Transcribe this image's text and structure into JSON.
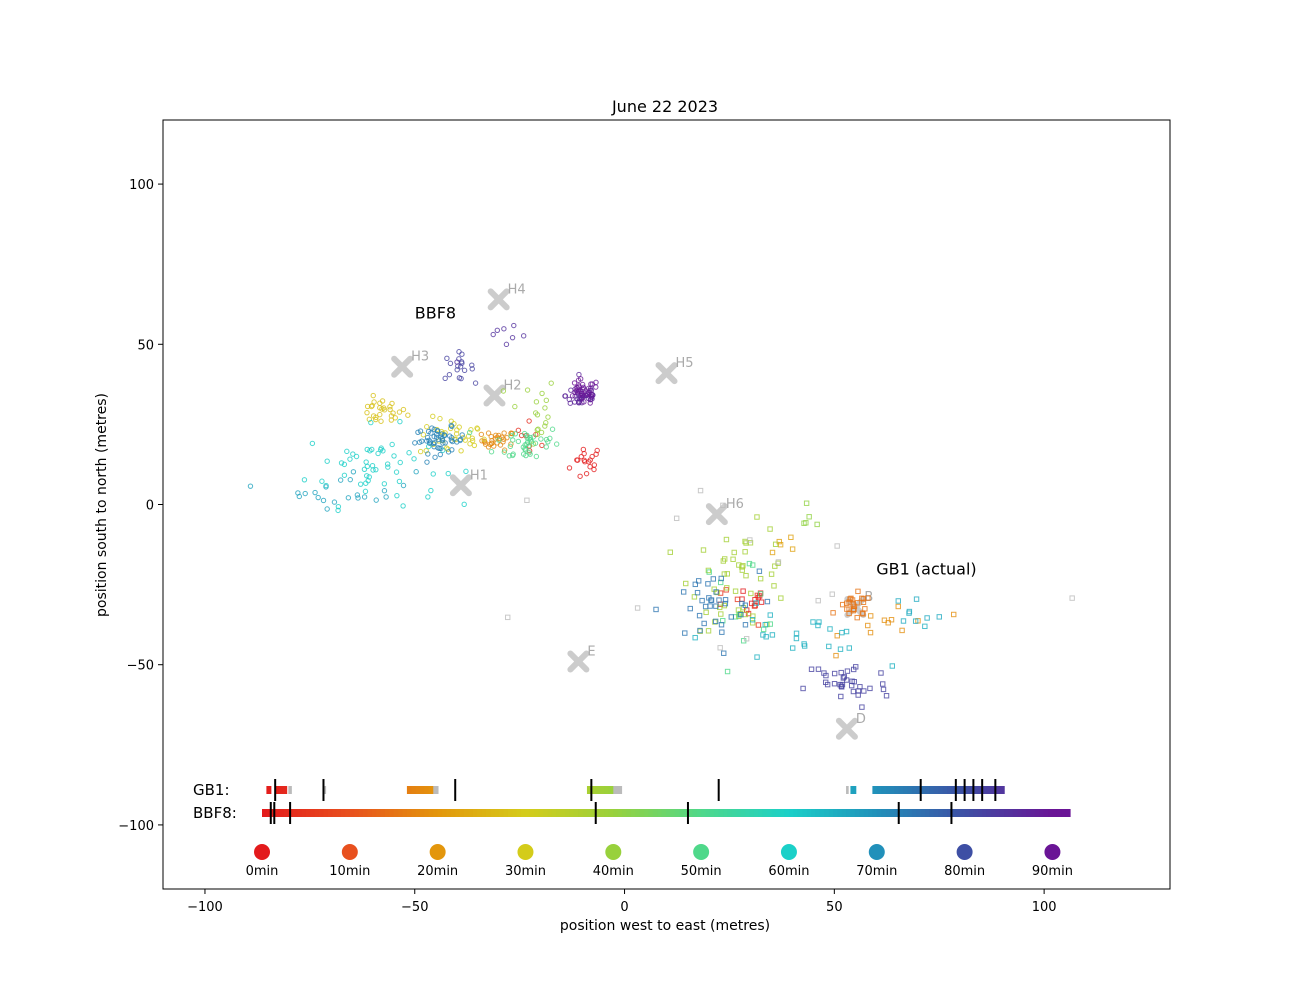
{
  "chart_data": {
    "type": "scatter",
    "title": "June 22 2023",
    "xlabel": "position west to east (metres)",
    "ylabel": "position south to north (metres)",
    "xlim": [
      -110,
      130
    ],
    "ylim": [
      -120,
      120
    ],
    "xticks": [
      -100,
      -50,
      0,
      50,
      100
    ],
    "yticks": [
      100,
      50,
      0,
      -50,
      -100
    ],
    "xtick_labels": [
      "−100",
      "−50",
      "0",
      "50",
      "100"
    ],
    "ytick_labels": [
      "100",
      "50",
      "0",
      "−50",
      "−100"
    ],
    "grid": false,
    "annotations": [
      {
        "text": "BBF8",
        "x": -50,
        "y": 60
      },
      {
        "text": "GB1 (actual)",
        "x": 60,
        "y": -20
      }
    ],
    "landmarks": [
      {
        "label": "H1",
        "x": -39,
        "y": 6
      },
      {
        "label": "H2",
        "x": -31,
        "y": 34
      },
      {
        "label": "H3",
        "x": -53,
        "y": 43
      },
      {
        "label": "H4",
        "x": -30,
        "y": 64
      },
      {
        "label": "H5",
        "x": 10,
        "y": 41
      },
      {
        "label": "H6",
        "x": 22,
        "y": -3
      },
      {
        "label": "E",
        "x": -11,
        "y": -49
      },
      {
        "label": "D",
        "x": 53,
        "y": -70
      },
      {
        "label": "B",
        "x": 55,
        "y": -32
      }
    ],
    "series": [
      {
        "name": "BBF8",
        "marker": "circle",
        "clusters": [
          {
            "t": 0,
            "cx": -9,
            "cy": 13,
            "rx": 2,
            "ry": 3,
            "n": 18
          },
          {
            "t": 3,
            "cx": -22,
            "cy": 22,
            "rx": 2,
            "ry": 2,
            "n": 8
          },
          {
            "t": 18,
            "cx": -30,
            "cy": 20,
            "rx": 2,
            "ry": 1.5,
            "n": 30
          },
          {
            "t": 28,
            "cx": -58,
            "cy": 29,
            "rx": 3,
            "ry": 2,
            "n": 28
          },
          {
            "t": 30,
            "cx": -41,
            "cy": 21,
            "rx": 4,
            "ry": 3,
            "n": 35
          },
          {
            "t": 40,
            "cx": -22,
            "cy": 29,
            "rx": 3,
            "ry": 6,
            "n": 18
          },
          {
            "t": 50,
            "cx": -23,
            "cy": 19,
            "rx": 4,
            "ry": 3,
            "n": 40
          },
          {
            "t": 60,
            "cx": -60,
            "cy": 12,
            "rx": 8,
            "ry": 6,
            "n": 55
          },
          {
            "t": 67,
            "cx": -66,
            "cy": 5,
            "rx": 8,
            "ry": 3,
            "n": 22
          },
          {
            "t": 72,
            "cx": -44,
            "cy": 20,
            "rx": 3,
            "ry": 2,
            "n": 50
          },
          {
            "t": 82,
            "cx": -40,
            "cy": 43,
            "rx": 2,
            "ry": 2,
            "n": 18
          },
          {
            "t": 85,
            "cx": -28,
            "cy": 50,
            "rx": 6,
            "ry": 3,
            "n": 8
          },
          {
            "t": 87,
            "cx": -10,
            "cy": 34,
            "rx": 2,
            "ry": 2,
            "n": 40
          },
          {
            "t": 92,
            "cx": -10,
            "cy": 35,
            "rx": 2,
            "ry": 2,
            "n": 30
          }
        ]
      },
      {
        "name": "GB1",
        "marker": "square",
        "clusters": [
          {
            "t": 0,
            "cx": 31,
            "cy": -30,
            "rx": 2,
            "ry": 2,
            "n": 10
          },
          {
            "t": 5,
            "cx": 26,
            "cy": -33,
            "rx": 4,
            "ry": 3,
            "n": 8
          },
          {
            "t": 15,
            "cx": 55,
            "cy": -32,
            "rx": 2,
            "ry": 2,
            "n": 25
          },
          {
            "t": 19,
            "cx": 64,
            "cy": -37,
            "rx": 6,
            "ry": 4,
            "n": 12
          },
          {
            "t": 22,
            "cx": 40,
            "cy": -12,
            "rx": 3,
            "ry": 3,
            "n": 5
          },
          {
            "t": 38,
            "cx": 28,
            "cy": -23,
            "rx": 6,
            "ry": 8,
            "n": 50
          },
          {
            "t": 41,
            "cx": 42,
            "cy": -4,
            "rx": 3,
            "ry": 4,
            "n": 5
          },
          {
            "t": 50,
            "cx": 28,
            "cy": -28,
            "rx": 6,
            "ry": 6,
            "n": 12
          },
          {
            "t": 65,
            "cx": 40,
            "cy": -42,
            "rx": 10,
            "ry": 5,
            "n": 25
          },
          {
            "t": 66,
            "cx": 70,
            "cy": -33,
            "rx": 3,
            "ry": 2,
            "n": 8
          },
          {
            "t": 74,
            "cx": 20,
            "cy": -33,
            "rx": 6,
            "ry": 6,
            "n": 35
          },
          {
            "t": 82,
            "cx": 53,
            "cy": -56,
            "rx": 5,
            "ry": 4,
            "n": 35
          },
          {
            "t": -1,
            "cx": 32,
            "cy": -18,
            "rx": 35,
            "ry": 18,
            "n": 14
          }
        ]
      }
    ],
    "timeline": {
      "rows": [
        {
          "label": "GB1:",
          "segments": [
            {
              "t0": 0.5,
              "t1": 1.0
            },
            {
              "t0": 1.5,
              "t1": 2.8
            },
            {
              "t0": 3.0,
              "t1": 3.4,
              "gap": true
            },
            {
              "t0": 7.0,
              "t1": 7.3,
              "gap": true
            },
            {
              "t0": 16.5,
              "t1": 19.5
            },
            {
              "t0": 19.5,
              "t1": 20.1,
              "gap": true
            },
            {
              "t0": 37.0,
              "t1": 40.0
            },
            {
              "t0": 40.0,
              "t1": 41.0,
              "gap": true
            },
            {
              "t0": 66.5,
              "t1": 66.8,
              "gap": true
            },
            {
              "t0": 67.0,
              "t1": 67.6
            },
            {
              "t0": 69.5,
              "t1": 84.5
            }
          ],
          "ticks": [
            1.5,
            7.0,
            22.0,
            37.5,
            52.0,
            75.0,
            79.0,
            80.0,
            81.0,
            82.0,
            83.5
          ]
        },
        {
          "label": "BBF8:",
          "segments": [
            {
              "t0": 0,
              "t1": 92
            }
          ],
          "ticks": [
            1.0,
            1.4,
            3.2,
            38.0,
            48.5,
            72.5,
            78.5
          ]
        }
      ],
      "legend": [
        {
          "label": "0min",
          "t": 0
        },
        {
          "label": "10min",
          "t": 10
        },
        {
          "label": "20min",
          "t": 20
        },
        {
          "label": "30min",
          "t": 30
        },
        {
          "label": "40min",
          "t": 40
        },
        {
          "label": "50min",
          "t": 50
        },
        {
          "label": "60min",
          "t": 60
        },
        {
          "label": "70min",
          "t": 70
        },
        {
          "label": "80min",
          "t": 80
        },
        {
          "label": "90min",
          "t": 90
        }
      ]
    },
    "colors": {
      "scale": [
        "#e31a1c",
        "#e8501e",
        "#e3960c",
        "#d4cc1a",
        "#98d13c",
        "#4fd88a",
        "#1bd0c8",
        "#2190ba",
        "#3e4fa4",
        "#6a1596"
      ],
      "landmark": "#cccccc",
      "landmark_label": "#aaaaaa",
      "gap": "#bbbbbb"
    }
  }
}
